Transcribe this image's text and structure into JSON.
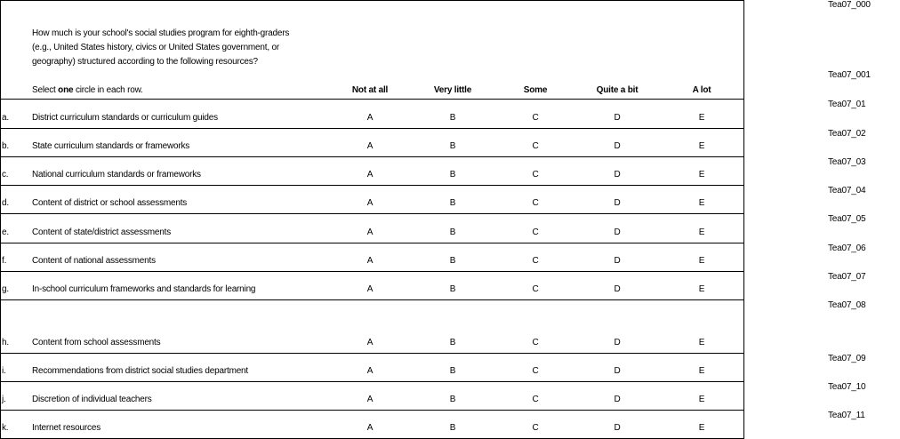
{
  "question": {
    "line1": "How much is your school's social studies program for eighth-graders",
    "line2": "(e.g., United States history, civics or United States government, or",
    "line3": "geography) structured according to the following resources?",
    "instruction_pre": "Select ",
    "instruction_bold": "one",
    "instruction_post": " circle in each row."
  },
  "columns": [
    "Not at all",
    "Very little",
    "Some",
    "Quite a bit",
    "A lot"
  ],
  "options": [
    "A",
    "B",
    "C",
    "D",
    "E"
  ],
  "rows": [
    {
      "letter": "a.",
      "label": "District curriculum standards or curriculum guides",
      "code": "Tea07_01"
    },
    {
      "letter": "b.",
      "label": "State curriculum standards or frameworks",
      "code": "Tea07_02"
    },
    {
      "letter": "c.",
      "label": "National curriculum standards or frameworks",
      "code": "Tea07_03"
    },
    {
      "letter": "d.",
      "label": "Content of district or school assessments",
      "code": "Tea07_04"
    },
    {
      "letter": "e.",
      "label": "Content of state/district assessments",
      "code": "Tea07_05"
    },
    {
      "letter": "f.",
      "label": "Content of national assessments",
      "code": "Tea07_06"
    },
    {
      "letter": "g.",
      "label": "In-school curriculum frameworks and standards for learning",
      "code": "Tea07_07"
    },
    {
      "letter": "h.",
      "label": "Content from school assessments",
      "code": "Tea07_08"
    },
    {
      "letter": "i.",
      "label": "Recommendations from district social studies department",
      "code": "Tea07_09"
    },
    {
      "letter": "j.",
      "label": "Discretion of individual teachers",
      "code": "Tea07_10"
    },
    {
      "letter": "k.",
      "label": "Internet resources",
      "code": "Tea07_11"
    }
  ],
  "codes": {
    "question": "Tea07_000",
    "instruction": "Tea07_001"
  }
}
